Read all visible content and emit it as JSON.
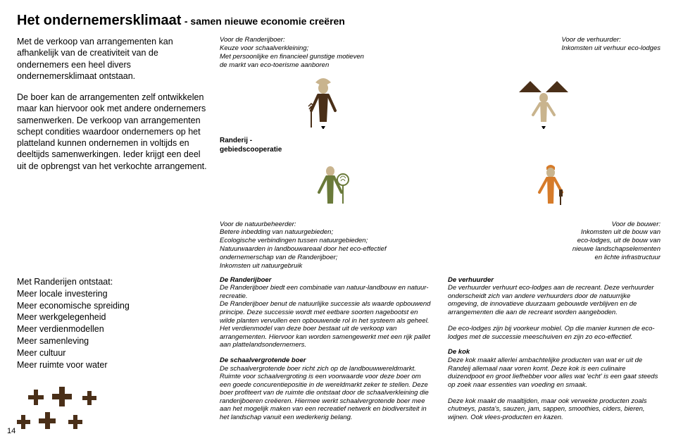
{
  "colors": {
    "brown": "#4a2f18",
    "green": "#6a7a3a",
    "orange": "#d67b2a",
    "beige": "#c9b48e",
    "text": "#000000",
    "bg": "#ffffff"
  },
  "title": {
    "main": "Het ondernemersklimaat",
    "sub": " - samen nieuwe economie creëren"
  },
  "left": {
    "p1": "Met de verkoop van arrangementen kan afhankelijk van de creativiteit van de ondernemers een heel divers ondernemersklimaat ontstaan.",
    "p2": "De boer kan de arrangementen zelf ontwikkelen maar kan hiervoor ook met andere ondernemers samenwerken. De verkoop van arrangementen schept condities waardoor ondernemers op het platteland kunnen ondernemen in voltijds en deeltijds samenwerkingen. Ieder krijgt een deel uit de opbrengst van het verkochte arrangement."
  },
  "topLabels": {
    "left": "Voor de Randerijboer:\nKeuze voor schaalverkleining;\nMet persoonlijke en financieel gunstige motieven\nde markt van eco-toerisme aanboren",
    "right": "Voor de verhuurder:\nInkomsten uit verhuur eco-lodges"
  },
  "coopLabel": "Randerij -\ngebiedscooperatie",
  "midLabels": {
    "left": "Voor de natuurbeheerder:\nBetere inbedding van natuurgebieden;\nEcologische verbindingen tussen natuurgebieden;\nNatuurwaarden in landbouwareaal door het eco-effectief\nondernemerschap van de Randerijboer;\nInkomsten uit natuurgebruik",
    "right": "Voor de bouwer:\nInkomsten uit de bouw van\neco-lodges, uit de bouw van\nnieuwe landschapselementen\nen lichte infrastructuur"
  },
  "bullets": {
    "lead": "Met Randerijen ontstaat:",
    "items": [
      "Meer locale investering",
      "Meer economische spreiding",
      "Meer werkgelegenheid",
      "Meer verdienmodellen",
      "Meer samenleving",
      "Meer cultuur",
      "Meer ruimte voor water"
    ]
  },
  "descLeft": [
    {
      "title": "De Randerijboer",
      "body": "De Randerijboer biedt een combinatie van natuur-landbouw en natuur-recreatie.\nDe Randerijboer benut de natuurlijke successie als waarde opbouwend principe. Deze successie wordt met eetbare soorten nagebootst en wilde planten vervullen een opbouwende rol in het systeem als geheel. Het verdienmodel van deze boer bestaat uit de verkoop van arrangementen. Hiervoor kan worden samengewerkt met een rijk pallet aan plattelandsondernemers."
    },
    {
      "title": "De schaalvergrotende boer",
      "body": "De schaalvergrotende boer richt zich op de landbouwwereldmarkt. Ruimte voor schaalvergroting is een voorwaarde voor deze boer om een goede concurentiepositie in de wereldmarkt zeker te stellen. Deze boer profiteert van de ruimte die ontstaat door de schaalverkleining die randerijboeren creëeren. Hiermee werkt schaalvergrotende boer mee aan het mogelijk maken van een recreatief netwerk en biodiversiteit in het landschap vanuit een wederkerig belang."
    }
  ],
  "descRight": [
    {
      "title": "De verhuurder",
      "body": "De verhuurder verhuurt eco-lodges aan de recreant. Deze verhuurder onderscheidt zich van andere verhuurders door de natuurrijke omgeving, de innovatieve duurzaam gebouwde verblijven en de arrangementen die aan de recreant worden aangeboden.\n\nDe eco-lodges zijn bij voorkeur mobiel. Op die manier kunnen de eco-lodges met de successie meeschuiven en zijn zo eco-effectief."
    },
    {
      "title": "De kok",
      "body": "Deze kok maakt allerlei ambachtelijke producten van wat er uit de Randeij allemaal naar voren komt. Deze kok is een culinaire duizendpoot en groot liefhebber voor alles wat 'echt' is een gaat steeds op zoek naar essenties van voeding en smaak.\n\nDeze kok maakt de maaltijden, maar ook verwekte producten zoals chutneys, pasta's, sauzen, jam, sappen, smoothies, ciders, bieren, wijnen. Ook vlees-producten en kazen."
    }
  ],
  "pageNum": "14"
}
